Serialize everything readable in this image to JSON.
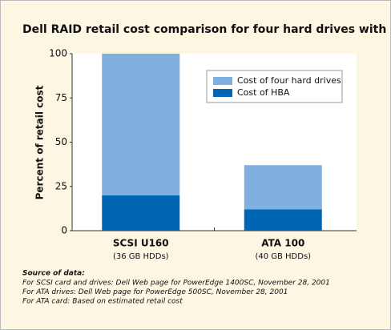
{
  "chart_data": {
    "type": "stacked-bar",
    "title": "Dell RAID retail cost comparison for four hard drives with HBA",
    "y_label": "Percent of retail cost",
    "categories": [
      "SCSI U160",
      "ATA 100"
    ],
    "category_notes": [
      "(36 GB HDDs)",
      "(40 GB HDDs)"
    ],
    "series": [
      {
        "name": "Cost of HBA",
        "color": "#0066b3",
        "values": [
          20,
          12
        ]
      },
      {
        "name": "Cost of four hard drives",
        "color": "#7fb0df",
        "values": [
          80,
          25
        ]
      }
    ],
    "ylim": [
      0,
      100
    ],
    "yticks": [
      0,
      25,
      50,
      75,
      100
    ],
    "legend": "upper-right",
    "source_title": "Source of data:",
    "sources": [
      "For SCSI card and drives: Dell Web page for PowerEdge 1400SC, November 28, 2001",
      "For ATA drives: Dell Web page for PowerEdge 500SC, November 28, 2001",
      "For ATA card: Based on estimated retail cost"
    ]
  }
}
